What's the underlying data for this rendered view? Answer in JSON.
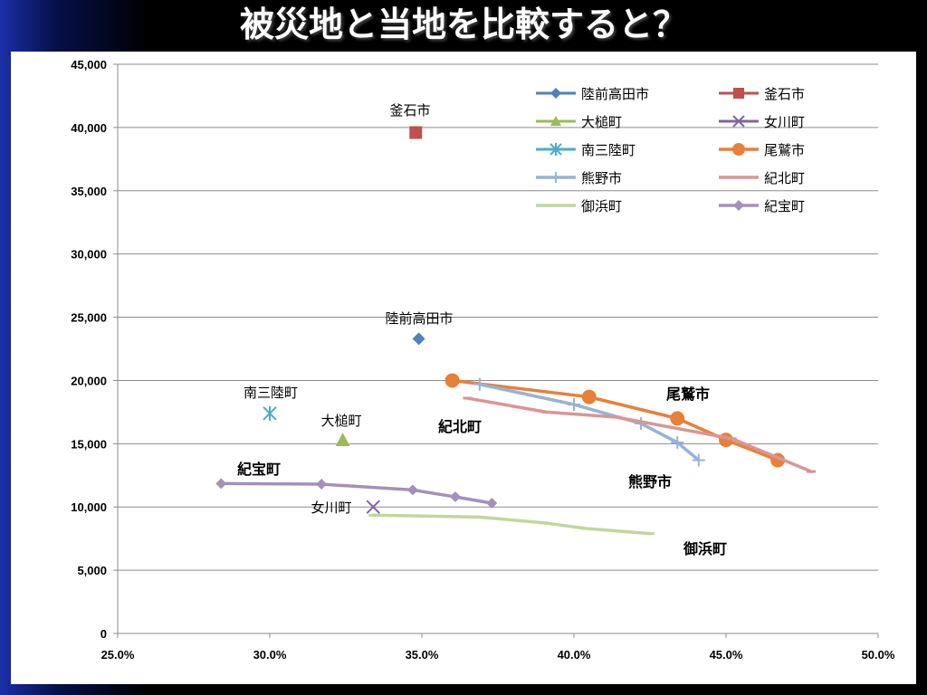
{
  "slide": {
    "title": "被災地と当地を比較すると？"
  },
  "chart_data": {
    "type": "scatter",
    "title": "",
    "xlabel": "",
    "ylabel": "",
    "xlim": [
      0.25,
      0.5
    ],
    "ylim": [
      0,
      45000
    ],
    "x_ticks": [
      "25.0%",
      "30.0%",
      "35.0%",
      "40.0%",
      "45.0%",
      "50.0%"
    ],
    "y_ticks": [
      "0",
      "5,000",
      "10,000",
      "15,000",
      "20,000",
      "25,000",
      "30,000",
      "35,000",
      "40,000",
      "45,000"
    ],
    "grid": "horizontal",
    "legend_position": "top-right",
    "series": [
      {
        "name": "陸前高田市",
        "color": "#4f81bd",
        "marker": "diamond",
        "line": false,
        "points": [
          [
            0.349,
            23300
          ]
        ]
      },
      {
        "name": "釜石市",
        "color": "#c0504d",
        "marker": "square",
        "line": false,
        "points": [
          [
            0.348,
            39600
          ]
        ]
      },
      {
        "name": "大槌町",
        "color": "#9bbb59",
        "marker": "triangle",
        "line": false,
        "points": [
          [
            0.324,
            15300
          ]
        ]
      },
      {
        "name": "女川町",
        "color": "#8064a2",
        "marker": "x",
        "line": false,
        "points": [
          [
            0.334,
            10000
          ]
        ]
      },
      {
        "name": "南三陸町",
        "color": "#4bacc6",
        "marker": "star",
        "line": false,
        "points": [
          [
            0.3,
            17400
          ]
        ]
      },
      {
        "name": "尾鷲市",
        "color": "#e8803a",
        "marker": "circle",
        "line": true,
        "points": [
          [
            0.36,
            20000
          ],
          [
            0.405,
            18700
          ],
          [
            0.434,
            17000
          ],
          [
            0.45,
            15300
          ],
          [
            0.467,
            13700
          ]
        ]
      },
      {
        "name": "熊野市",
        "color": "#95b3d7",
        "marker": "plus",
        "line": true,
        "points": [
          [
            0.369,
            19700
          ],
          [
            0.4,
            18100
          ],
          [
            0.422,
            16600
          ],
          [
            0.434,
            15100
          ],
          [
            0.441,
            13700
          ]
        ]
      },
      {
        "name": "紀北町",
        "color": "#d99694",
        "marker": "dash",
        "line": true,
        "points": [
          [
            0.365,
            18600
          ],
          [
            0.391,
            17500
          ],
          [
            0.414,
            17100
          ],
          [
            0.452,
            15400
          ],
          [
            0.478,
            12800
          ]
        ]
      },
      {
        "name": "御浜町",
        "color": "#c3d69b",
        "marker": "dash",
        "line": true,
        "points": [
          [
            0.334,
            9350
          ],
          [
            0.369,
            9200
          ],
          [
            0.39,
            8750
          ],
          [
            0.404,
            8300
          ],
          [
            0.425,
            7900
          ]
        ]
      },
      {
        "name": "紀宝町",
        "color": "#a390bd",
        "marker": "diamond",
        "line": true,
        "points": [
          [
            0.284,
            11850
          ],
          [
            0.317,
            11800
          ],
          [
            0.347,
            11350
          ],
          [
            0.361,
            10800
          ],
          [
            0.373,
            10300
          ]
        ]
      }
    ],
    "annotations": [
      {
        "text": "釜石市",
        "bold": false
      },
      {
        "text": "陸前高田市",
        "bold": false
      },
      {
        "text": "南三陸町",
        "bold": false
      },
      {
        "text": "大槌町",
        "bold": false
      },
      {
        "text": "紀北町",
        "bold": true
      },
      {
        "text": "尾鷲市",
        "bold": true
      },
      {
        "text": "紀宝町",
        "bold": true
      },
      {
        "text": "女川町",
        "bold": false
      },
      {
        "text": "熊野市",
        "bold": true
      },
      {
        "text": "御浜町",
        "bold": true
      }
    ]
  }
}
